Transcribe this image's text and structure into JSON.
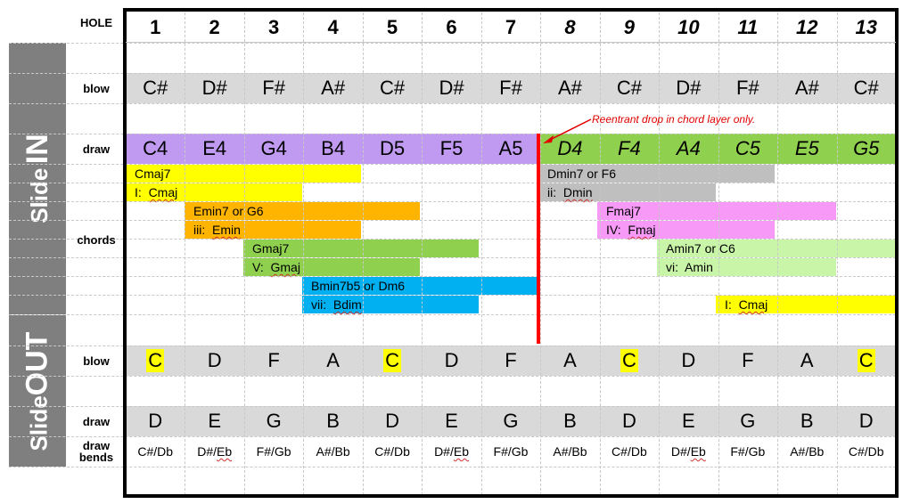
{
  "hole_label": "HOLE",
  "holes": [
    "1",
    "2",
    "3",
    "4",
    "5",
    "6",
    "7",
    "8",
    "9",
    "10",
    "11",
    "12",
    "13"
  ],
  "sidebar": {
    "slide_in_small": "Slide",
    "slide_in_big": "IN",
    "slide_out_small": "Slide",
    "slide_out_big": "OUT"
  },
  "row_labels": {
    "blow_in": "blow",
    "draw_in": "draw",
    "chords": "chords",
    "blow_out": "blow",
    "draw_out": "draw",
    "draw_bends_1": "draw",
    "draw_bends_2": "bends"
  },
  "slide_in_blow": [
    "C#",
    "D#",
    "F#",
    "A#",
    "C#",
    "D#",
    "F#",
    "A#",
    "C#",
    "D#",
    "F#",
    "A#",
    "C#"
  ],
  "slide_in_draw": [
    "C4",
    "E4",
    "G4",
    "B4",
    "D5",
    "F5",
    "A5",
    "D4",
    "F4",
    "A4",
    "C5",
    "E5",
    "G5"
  ],
  "slide_out_blow": [
    "C",
    "D",
    "F",
    "A",
    "C",
    "D",
    "F",
    "A",
    "C",
    "D",
    "F",
    "A",
    "C"
  ],
  "slide_out_blow_highlight": [
    true,
    false,
    false,
    false,
    true,
    false,
    false,
    false,
    true,
    false,
    false,
    false,
    true
  ],
  "slide_out_draw": [
    "D",
    "E",
    "G",
    "B",
    "D",
    "E",
    "G",
    "B",
    "D",
    "E",
    "G",
    "B",
    "D"
  ],
  "draw_bends": [
    "C#/Db",
    "D#/Eb",
    "F#/Gb",
    "A#/Bb",
    "C#/Db",
    "D#/Eb",
    "F#/Gb",
    "A#/Bb",
    "C#/Db",
    "D#/Eb",
    "F#/Gb",
    "A#/Bb",
    "C#/Db"
  ],
  "annotation": "Reentrant drop in chord layer only.",
  "chords": {
    "cmaj7": "Cmaj7",
    "i_cmaj_prefix": "I:",
    "i_cmaj_name": "Cmaj",
    "emin7": "Emin7 or G6",
    "iii_prefix": "iii:",
    "iii_name": "Emin",
    "gmaj7": "Gmaj7",
    "v_prefix": "V:",
    "v_name": "Gmaj",
    "bmin7b5": "Bmin7b5 or Dm6",
    "vii_prefix": "vii:",
    "vii_name": "Bdim",
    "dmin7": "Dmin7 or F6",
    "ii_prefix": "ii:",
    "ii_name": "Dmin",
    "fmaj7": "Fmaj7",
    "iv_prefix": "IV:",
    "iv_name": "Fmaj",
    "amin7": "Amin7 or C6",
    "vi_prefix": "vi:",
    "vi_name": "Amin",
    "i2_prefix": "I:",
    "i2_name": "Cmaj"
  },
  "colors": {
    "sidebar": "#7f7f7f",
    "row_gray": "#d9d9d9",
    "draw_purple": "#c09af0",
    "draw_green": "#8fd14f",
    "yellow": "#ffff00",
    "orange": "#ffb400",
    "green_chord": "#8fd14f",
    "blue": "#00b0f0",
    "gray_chord": "#bfbfbf",
    "pink": "#f79af7",
    "light_green": "#c8f5a8",
    "red": "#ff0000"
  }
}
